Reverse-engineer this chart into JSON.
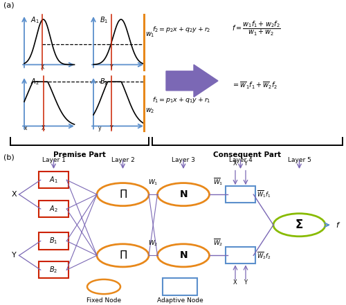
{
  "fig_width": 5.0,
  "fig_height": 4.41,
  "dpi": 100,
  "bg_color": "#ffffff",
  "part_a_label": "(a)",
  "part_b_label": "(b)",
  "premise_label": "Premise Part",
  "consequent_label": "Consequent Part",
  "arrow_purple": "#7B68B5",
  "arrow_orange": "#E8881A",
  "blue_arrow": "#5B8FCC",
  "red_line": "#CC2200",
  "orange_line": "#E8881A",
  "node_circle_color": "#E8881A",
  "node_square_color": "#5B8FCC",
  "node_sigma_color": "#88BB00",
  "fixed_node_label": "Fixed Node",
  "adaptive_node_label": "Adaptive Node",
  "layer_labels": [
    "Layer 1",
    "Layer 2",
    "Layer 3",
    "Layer 4",
    "Layer 5"
  ]
}
